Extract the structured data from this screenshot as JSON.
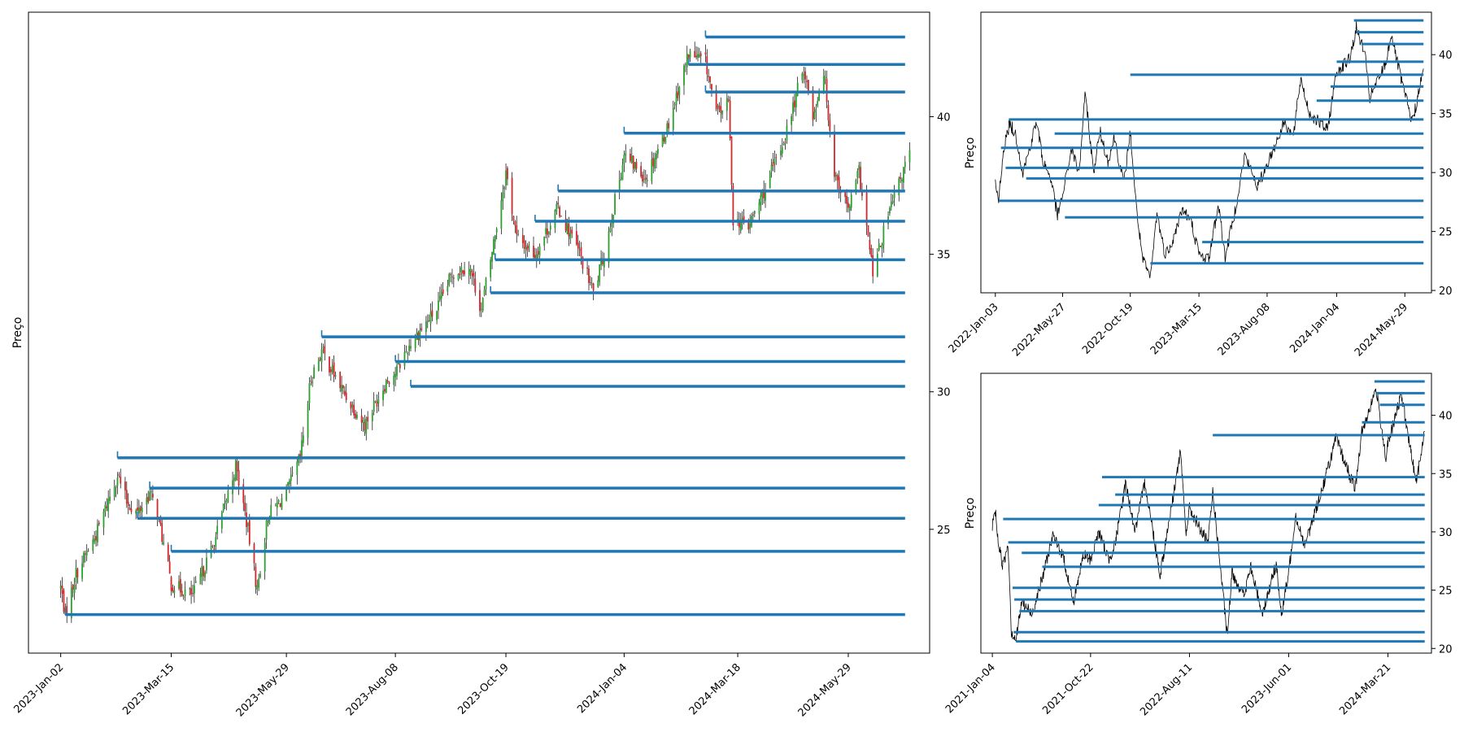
{
  "colors": {
    "level": "#1f77b4",
    "up": "#2ca02c",
    "down": "#d62728",
    "price": "#000000",
    "frame": "#000000"
  },
  "chart_data": [
    {
      "type": "candlestick",
      "ylabel": "Preço",
      "ylim": [
        20.5,
        43.8
      ],
      "y_ticks": [
        25,
        30,
        35,
        40
      ],
      "x_ticks": [
        "2023-Jan-02",
        "2023-Mar-15",
        "2023-May-29",
        "2023-Aug-08",
        "2023-Oct-19",
        "2024-Jan-04",
        "2024-Mar-18",
        "2024-May-29"
      ],
      "x_range": [
        "2022-Dec-12",
        "2024-Jul-21"
      ],
      "price_path": [
        [
          "2023-Jan-02",
          22.9
        ],
        [
          "2023-Jan-05",
          21.9
        ],
        [
          "2023-Jan-12",
          23.4
        ],
        [
          "2023-Jan-25",
          24.8
        ],
        [
          "2023-Feb-08",
          27.0
        ],
        [
          "2023-Feb-14",
          26.0
        ],
        [
          "2023-Feb-21",
          25.6
        ],
        [
          "2023-Mar-01",
          26.3
        ],
        [
          "2023-Mar-06",
          25.6
        ],
        [
          "2023-Mar-15",
          23.0
        ],
        [
          "2023-Mar-29",
          22.6
        ],
        [
          "2023-Apr-12",
          24.5
        ],
        [
          "2023-Apr-26",
          27.3
        ],
        [
          "2023-May-03",
          25.3
        ],
        [
          "2023-May-10",
          22.8
        ],
        [
          "2023-May-17",
          25.5
        ],
        [
          "2023-May-29",
          26.3
        ],
        [
          "2023-Jun-07",
          27.6
        ],
        [
          "2023-Jun-14",
          30.5
        ],
        [
          "2023-Jun-21",
          31.5
        ],
        [
          "2023-Jul-05",
          30.0
        ],
        [
          "2023-Jul-19",
          28.8
        ],
        [
          "2023-Aug-02",
          30.4
        ],
        [
          "2023-Aug-08",
          30.7
        ],
        [
          "2023-Aug-18",
          31.8
        ],
        [
          "2023-Sep-04",
          33.0
        ],
        [
          "2023-Sep-14",
          34.3
        ],
        [
          "2023-Sep-25",
          34.6
        ],
        [
          "2023-Oct-03",
          33.0
        ],
        [
          "2023-Oct-09",
          34.8
        ],
        [
          "2023-Oct-19",
          38.0
        ],
        [
          "2023-Oct-26",
          35.6
        ],
        [
          "2023-Nov-07",
          35.0
        ],
        [
          "2023-Nov-22",
          36.7
        ],
        [
          "2023-Dec-06",
          35.0
        ],
        [
          "2023-Dec-15",
          33.6
        ],
        [
          "2023-Dec-22",
          35.0
        ],
        [
          "2024-Jan-04",
          38.6
        ],
        [
          "2024-Jan-18",
          37.8
        ],
        [
          "2024-Feb-01",
          39.6
        ],
        [
          "2024-Feb-15",
          42.3
        ],
        [
          "2024-Feb-26",
          42.0
        ],
        [
          "2024-Mar-04",
          40.1
        ],
        [
          "2024-Mar-12",
          40.5
        ],
        [
          "2024-Mar-15",
          36.3
        ],
        [
          "2024-Mar-25",
          36.0
        ],
        [
          "2024-Apr-05",
          37.4
        ],
        [
          "2024-Apr-18",
          39.3
        ],
        [
          "2024-Apr-30",
          41.8
        ],
        [
          "2024-May-06",
          40.0
        ],
        [
          "2024-May-13",
          41.7
        ],
        [
          "2024-May-20",
          38.0
        ],
        [
          "2024-May-29",
          36.6
        ],
        [
          "2024-Jun-05",
          38.0
        ],
        [
          "2024-Jun-14",
          34.3
        ],
        [
          "2024-Jun-24",
          36.4
        ],
        [
          "2024-Jul-08",
          38.7
        ]
      ],
      "levels": [
        {
          "start": "2023-Jan-05",
          "value": 21.9
        },
        {
          "start": "2023-Mar-15",
          "value": 24.2
        },
        {
          "start": "2023-Feb-21",
          "value": 25.4
        },
        {
          "start": "2023-Mar-01",
          "value": 26.5
        },
        {
          "start": "2023-Feb-08",
          "value": 27.6
        },
        {
          "start": "2023-Aug-18",
          "value": 30.2
        },
        {
          "start": "2023-Aug-08",
          "value": 31.1
        },
        {
          "start": "2023-Jun-21",
          "value": 32.0
        },
        {
          "start": "2023-Oct-09",
          "value": 33.6
        },
        {
          "start": "2023-Oct-12",
          "value": 34.8
        },
        {
          "start": "2023-Nov-07",
          "value": 36.2
        },
        {
          "start": "2023-Nov-22",
          "value": 37.3
        },
        {
          "start": "2024-Jan-04",
          "value": 39.4
        },
        {
          "start": "2024-Feb-26",
          "value": 40.9
        },
        {
          "start": "2024-Feb-15",
          "value": 41.9
        },
        {
          "start": "2024-Feb-26",
          "value": 42.9
        }
      ],
      "level_end": "2024-Jul-05"
    },
    {
      "type": "line",
      "ylabel": "Preço",
      "ylim": [
        19.8,
        43.6
      ],
      "y_ticks": [
        20,
        25,
        30,
        35,
        40
      ],
      "x_ticks": [
        "2022-Jan-03",
        "2022-May-27",
        "2022-Oct-19",
        "2023-Mar-15",
        "2023-Aug-08",
        "2024-Jan-04",
        "2024-May-29"
      ],
      "x_range": [
        "2021-Dec-03",
        "2024-Jul-25"
      ],
      "price_path": [
        [
          "2022-Jan-03",
          29.0
        ],
        [
          "2022-Jan-10",
          27.6
        ],
        [
          "2022-Jan-20",
          32.0
        ],
        [
          "2022-Feb-03",
          34.2
        ],
        [
          "2022-Feb-17",
          33.0
        ],
        [
          "2022-Mar-03",
          30.0
        ],
        [
          "2022-Mar-17",
          32.0
        ],
        [
          "2022-Apr-01",
          34.3
        ],
        [
          "2022-Apr-15",
          31.0
        ],
        [
          "2022-May-02",
          29.5
        ],
        [
          "2022-May-16",
          26.3
        ],
        [
          "2022-May-27",
          28.0
        ],
        [
          "2022-Jun-15",
          32.0
        ],
        [
          "2022-Jul-01",
          30.0
        ],
        [
          "2022-Jul-15",
          36.8
        ],
        [
          "2022-Aug-01",
          30.0
        ],
        [
          "2022-Aug-15",
          33.5
        ],
        [
          "2022-Sep-01",
          31.0
        ],
        [
          "2022-Sep-15",
          33.0
        ],
        [
          "2022-Oct-05",
          29.0
        ],
        [
          "2022-Oct-19",
          33.5
        ],
        [
          "2022-Nov-01",
          27.0
        ],
        [
          "2022-Nov-15",
          22.5
        ],
        [
          "2022-Dec-01",
          21.0
        ],
        [
          "2022-Dec-15",
          26.5
        ],
        [
          "2023-Jan-02",
          23.0
        ],
        [
          "2023-Jan-20",
          24.5
        ],
        [
          "2023-Feb-08",
          27.0
        ],
        [
          "2023-Mar-01",
          25.5
        ],
        [
          "2023-Mar-15",
          23.0
        ],
        [
          "2023-Apr-05",
          22.7
        ],
        [
          "2023-Apr-26",
          27.3
        ],
        [
          "2023-May-10",
          22.8
        ],
        [
          "2023-May-29",
          26.3
        ],
        [
          "2023-Jun-21",
          31.5
        ],
        [
          "2023-Jul-19",
          28.8
        ],
        [
          "2023-Aug-08",
          30.7
        ],
        [
          "2023-Sep-14",
          34.3
        ],
        [
          "2023-Oct-03",
          33.0
        ],
        [
          "2023-Oct-19",
          38.0
        ],
        [
          "2023-Nov-07",
          35.0
        ],
        [
          "2023-Dec-15",
          33.6
        ],
        [
          "2024-Jan-04",
          38.6
        ],
        [
          "2024-Feb-01",
          39.6
        ],
        [
          "2024-Feb-15",
          42.3
        ],
        [
          "2024-Mar-04",
          40.1
        ],
        [
          "2024-Mar-15",
          36.3
        ],
        [
          "2024-Apr-18",
          39.3
        ],
        [
          "2024-Apr-30",
          41.8
        ],
        [
          "2024-May-20",
          38.0
        ],
        [
          "2024-May-29",
          36.6
        ],
        [
          "2024-Jun-14",
          34.3
        ],
        [
          "2024-Jul-08",
          38.7
        ]
      ],
      "levels": [
        {
          "start": "2022-Dec-01",
          "value": 22.3
        },
        {
          "start": "2023-Mar-22",
          "value": 24.1
        },
        {
          "start": "2022-Jun-01",
          "value": 26.2
        },
        {
          "start": "2022-Jan-10",
          "value": 27.6
        },
        {
          "start": "2022-Mar-10",
          "value": 29.5
        },
        {
          "start": "2022-Jan-25",
          "value": 30.4
        },
        {
          "start": "2022-Jan-15",
          "value": 32.1
        },
        {
          "start": "2022-May-10",
          "value": 33.3
        },
        {
          "start": "2022-Feb-01",
          "value": 34.5
        },
        {
          "start": "2023-Nov-22",
          "value": 36.1
        },
        {
          "start": "2023-Dec-22",
          "value": 37.3
        },
        {
          "start": "2022-Oct-19",
          "value": 38.3
        },
        {
          "start": "2024-Jan-04",
          "value": 39.4
        },
        {
          "start": "2024-Feb-26",
          "value": 40.9
        },
        {
          "start": "2024-Feb-15",
          "value": 41.9
        },
        {
          "start": "2024-Feb-10",
          "value": 42.9
        }
      ],
      "level_end": "2024-Jul-08"
    },
    {
      "type": "line",
      "ylabel": "Preço",
      "ylim": [
        19.6,
        43.6
      ],
      "y_ticks": [
        20,
        25,
        30,
        35,
        40
      ],
      "x_ticks": [
        "2021-Jan-04",
        "2021-Oct-22",
        "2022-Aug-11",
        "2023-Jun-01",
        "2024-Mar-21"
      ],
      "x_range": [
        "2020-Dec-01",
        "2024-Jul-28"
      ],
      "price_path": [
        [
          "2021-Jan-04",
          30.5
        ],
        [
          "2021-Jan-12",
          32.0
        ],
        [
          "2021-Jan-22",
          29.0
        ],
        [
          "2021-Feb-05",
          27.0
        ],
        [
          "2021-Feb-20",
          29.2
        ],
        [
          "2021-Mar-01",
          21.5
        ],
        [
          "2021-Mar-15",
          20.8
        ],
        [
          "2021-Apr-01",
          24.0
        ],
        [
          "2021-May-01",
          23.0
        ],
        [
          "2021-Jun-01",
          26.0
        ],
        [
          "2021-Jul-01",
          29.6
        ],
        [
          "2021-Aug-01",
          28.0
        ],
        [
          "2021-Sep-01",
          24.0
        ],
        [
          "2021-Oct-01",
          28.0
        ],
        [
          "2021-Oct-22",
          27.6
        ],
        [
          "2021-Nov-15",
          30.0
        ],
        [
          "2021-Dec-15",
          27.6
        ],
        [
          "2022-Jan-03",
          29.0
        ],
        [
          "2022-Feb-03",
          34.2
        ],
        [
          "2022-Mar-03",
          30.0
        ],
        [
          "2022-Apr-01",
          34.3
        ],
        [
          "2022-May-16",
          26.3
        ],
        [
          "2022-Jul-15",
          36.8
        ],
        [
          "2022-Aug-01",
          30.0
        ],
        [
          "2022-Aug-11",
          32.0
        ],
        [
          "2022-Oct-05",
          29.0
        ],
        [
          "2022-Oct-19",
          33.5
        ],
        [
          "2022-Dec-01",
          21.0
        ],
        [
          "2022-Dec-15",
          26.5
        ],
        [
          "2023-Jan-20",
          24.5
        ],
        [
          "2023-Feb-08",
          27.0
        ],
        [
          "2023-Mar-15",
          23.0
        ],
        [
          "2023-Apr-26",
          27.3
        ],
        [
          "2023-May-10",
          22.8
        ],
        [
          "2023-Jun-01",
          26.5
        ],
        [
          "2023-Jun-21",
          31.5
        ],
        [
          "2023-Jul-19",
          28.8
        ],
        [
          "2023-Sep-14",
          34.3
        ],
        [
          "2023-Oct-19",
          38.0
        ],
        [
          "2023-Dec-15",
          33.6
        ],
        [
          "2024-Jan-04",
          38.6
        ],
        [
          "2024-Feb-15",
          42.3
        ],
        [
          "2024-Mar-15",
          36.3
        ],
        [
          "2024-Mar-21",
          37.5
        ],
        [
          "2024-Apr-30",
          41.8
        ],
        [
          "2024-May-29",
          36.6
        ],
        [
          "2024-Jun-14",
          34.3
        ],
        [
          "2024-Jul-08",
          38.7
        ]
      ],
      "levels": [
        {
          "start": "2021-Mar-15",
          "value": 20.6
        },
        {
          "start": "2021-Mar-08",
          "value": 21.4
        },
        {
          "start": "2021-Mar-25",
          "value": 23.2
        },
        {
          "start": "2021-Mar-10",
          "value": 24.2
        },
        {
          "start": "2021-Mar-05",
          "value": 25.2
        },
        {
          "start": "2021-Jun-01",
          "value": 27.0
        },
        {
          "start": "2021-Apr-01",
          "value": 28.2
        },
        {
          "start": "2021-Feb-20",
          "value": 29.1
        },
        {
          "start": "2021-Feb-05",
          "value": 31.1
        },
        {
          "start": "2021-Nov-15",
          "value": 32.3
        },
        {
          "start": "2022-Jan-03",
          "value": 33.2
        },
        {
          "start": "2021-Nov-25",
          "value": 34.7
        },
        {
          "start": "2022-Oct-19",
          "value": 38.3
        },
        {
          "start": "2024-Jan-04",
          "value": 39.4
        },
        {
          "start": "2024-Feb-26",
          "value": 40.9
        },
        {
          "start": "2024-Feb-15",
          "value": 41.9
        },
        {
          "start": "2024-Feb-10",
          "value": 42.9
        }
      ],
      "level_end": "2024-Jul-08"
    }
  ]
}
